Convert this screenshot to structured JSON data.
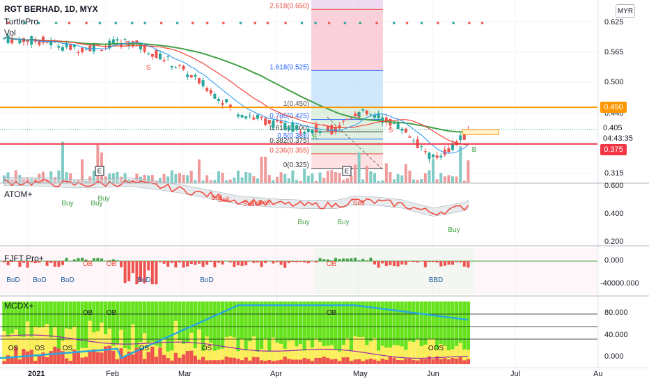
{
  "symbol_title": "RGT BERHAD, 1D, MYX",
  "currency": "MYR",
  "indicators": {
    "main1": "TurtlePro",
    "main2": "Vol",
    "atom": "ATOM+",
    "fjft": "FJFT Pro+",
    "mcdx": "MCDX+"
  },
  "fib_levels": [
    {
      "label": "2.618(0.650)",
      "value": 0.65,
      "color": "#e74c3c"
    },
    {
      "label": "1.618(0.525)",
      "value": 0.525,
      "color": "#2962ff"
    },
    {
      "label": "1(0.450)",
      "value": 0.45,
      "color": "#555555"
    },
    {
      "label": "0.786(0.425)",
      "value": 0.425,
      "color": "#2962ff"
    },
    {
      "label": "0.618(0.400)",
      "value": 0.4,
      "color": "#333333"
    },
    {
      "label": "0.5(0.385)",
      "value": 0.385,
      "color": "#2962ff"
    },
    {
      "label": "0.382(0.375)",
      "value": 0.375,
      "color": "#333333"
    },
    {
      "label": "0.236(0.355)",
      "value": 0.355,
      "color": "#e74c3c"
    },
    {
      "label": "0(0.325)",
      "value": 0.325,
      "color": "#333333"
    }
  ],
  "price_axis": [
    "0.625",
    "0.565",
    "0.500",
    "0.440",
    "0.315"
  ],
  "price_tags": {
    "orange": "0.450",
    "current": "0.405",
    "countdown": "04:43:35",
    "red": "0.375"
  },
  "colors": {
    "orange": "#ff9800",
    "red": "#f23645",
    "up": "#26a69a",
    "down": "#ef5350",
    "ma_green": "#43a047",
    "ma_red": "#f44336",
    "ma_blue": "#2196f3"
  },
  "atom_axis": [
    "0.600",
    "0.400",
    "0.200"
  ],
  "atom_labels": {
    "buy": "Buy",
    "sell": "Sell"
  },
  "fjft_axis": [
    "0.000",
    "-40000.000"
  ],
  "fjft_labels": {
    "ob": "OB",
    "bod": "BoD",
    "bbd": "BBD"
  },
  "mcdx_axis": [
    "80.000",
    "40.000",
    "0.000"
  ],
  "mcdx_labels": {
    "ob": "OB",
    "os": "OS",
    "oos": "OOS"
  },
  "main_markers": {
    "e": "E",
    "s": "S",
    "b": "B"
  },
  "time_axis": [
    {
      "label": "2021",
      "bold": true
    },
    {
      "label": "Feb",
      "bold": false
    },
    {
      "label": "Mar",
      "bold": false
    },
    {
      "label": "Apr",
      "bold": false
    },
    {
      "label": "May",
      "bold": false
    },
    {
      "label": "Jun",
      "bold": false
    },
    {
      "label": "Jul",
      "bold": false
    },
    {
      "label": "Au",
      "bold": false
    }
  ]
}
